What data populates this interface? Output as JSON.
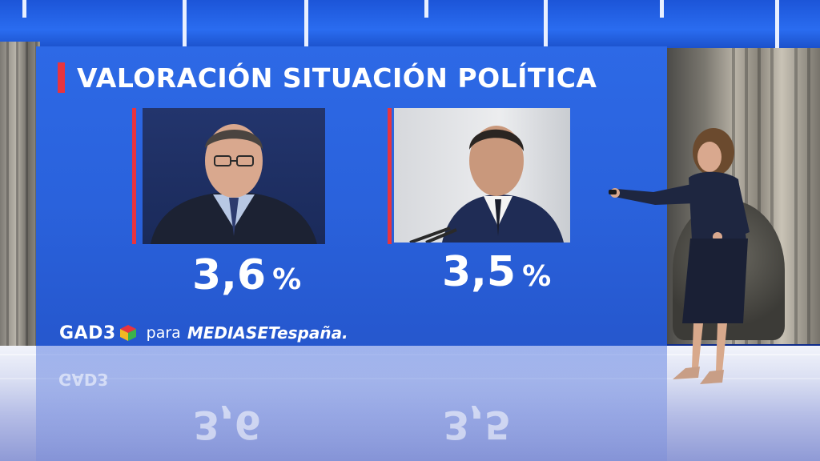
{
  "graphic": {
    "title": "VALORACIÓN SITUACIÓN POLÍTICA",
    "candidates": [
      {
        "percent_value": "3,6",
        "percent_sign": "%"
      },
      {
        "percent_value": "3,5",
        "percent_sign": "%"
      }
    ],
    "source": {
      "logo_name": "GAD3",
      "connector": "para",
      "broadcaster": "MEDIASETespaña."
    }
  },
  "colors": {
    "panel": "#2a62dc",
    "accent": "#e8343e",
    "text": "#ffffff"
  }
}
